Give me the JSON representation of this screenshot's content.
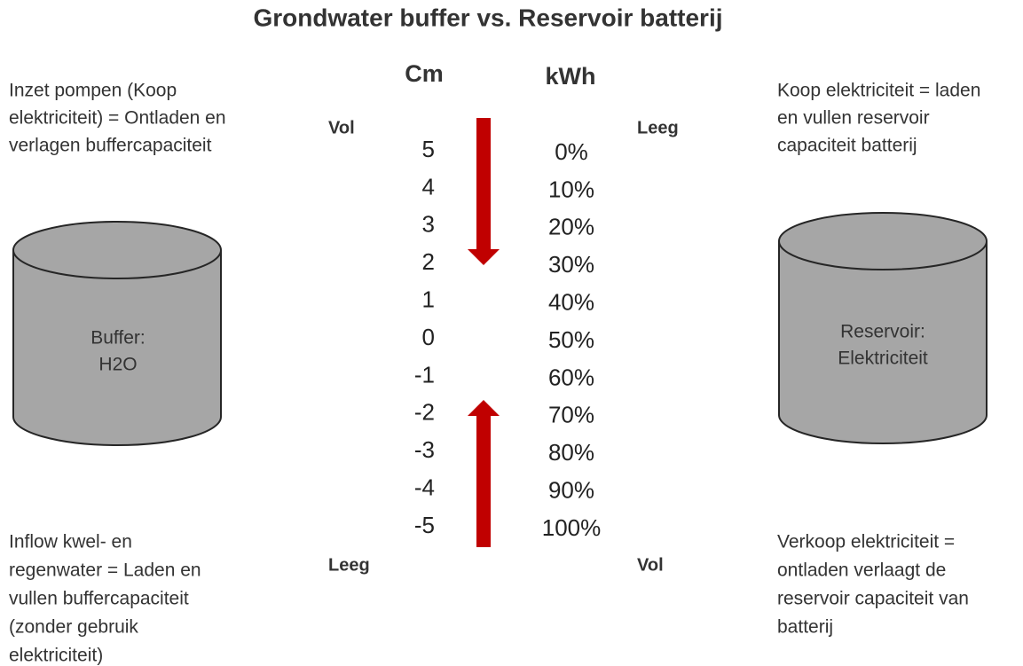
{
  "title": "Grondwater buffer vs. Reservoir batterij",
  "left": {
    "top_text": [
      "Inzet pompen (Koop",
      "elektriciteit) = Ontladen en",
      "verlagen buffercapaciteit"
    ],
    "cylinder_label": [
      "Buffer:",
      "H2O"
    ],
    "bottom_text": [
      "Inflow kwel- en",
      "regenwater = Laden en",
      "vullen buffercapaciteit",
      "(zonder gebruik",
      "elektriciteit)"
    ]
  },
  "right": {
    "top_text": [
      "Koop elektriciteit  = laden",
      "en vullen reservoir",
      "capaciteit batterij"
    ],
    "cylinder_label": [
      "Reservoir:",
      "Elektriciteit"
    ],
    "bottom_text": [
      "Verkoop elektriciteit  =",
      "ontladen verlaagt de",
      "reservoir capaciteit van",
      "batterij"
    ]
  },
  "scale": {
    "cm_header": "Cm",
    "kwh_header": "kWh",
    "left_top": "Vol",
    "left_bottom": "Leeg",
    "right_top": "Leeg",
    "right_bottom": "Vol",
    "cm": [
      "5",
      "4",
      "3",
      "2",
      "1",
      "0",
      "-1",
      "-2",
      "-3",
      "-4",
      "-5"
    ],
    "kwh": [
      "0%",
      "10%",
      "20%",
      "30%",
      "40%",
      "50%",
      "60%",
      "70%",
      "80%",
      "90%",
      "100%"
    ]
  }
}
